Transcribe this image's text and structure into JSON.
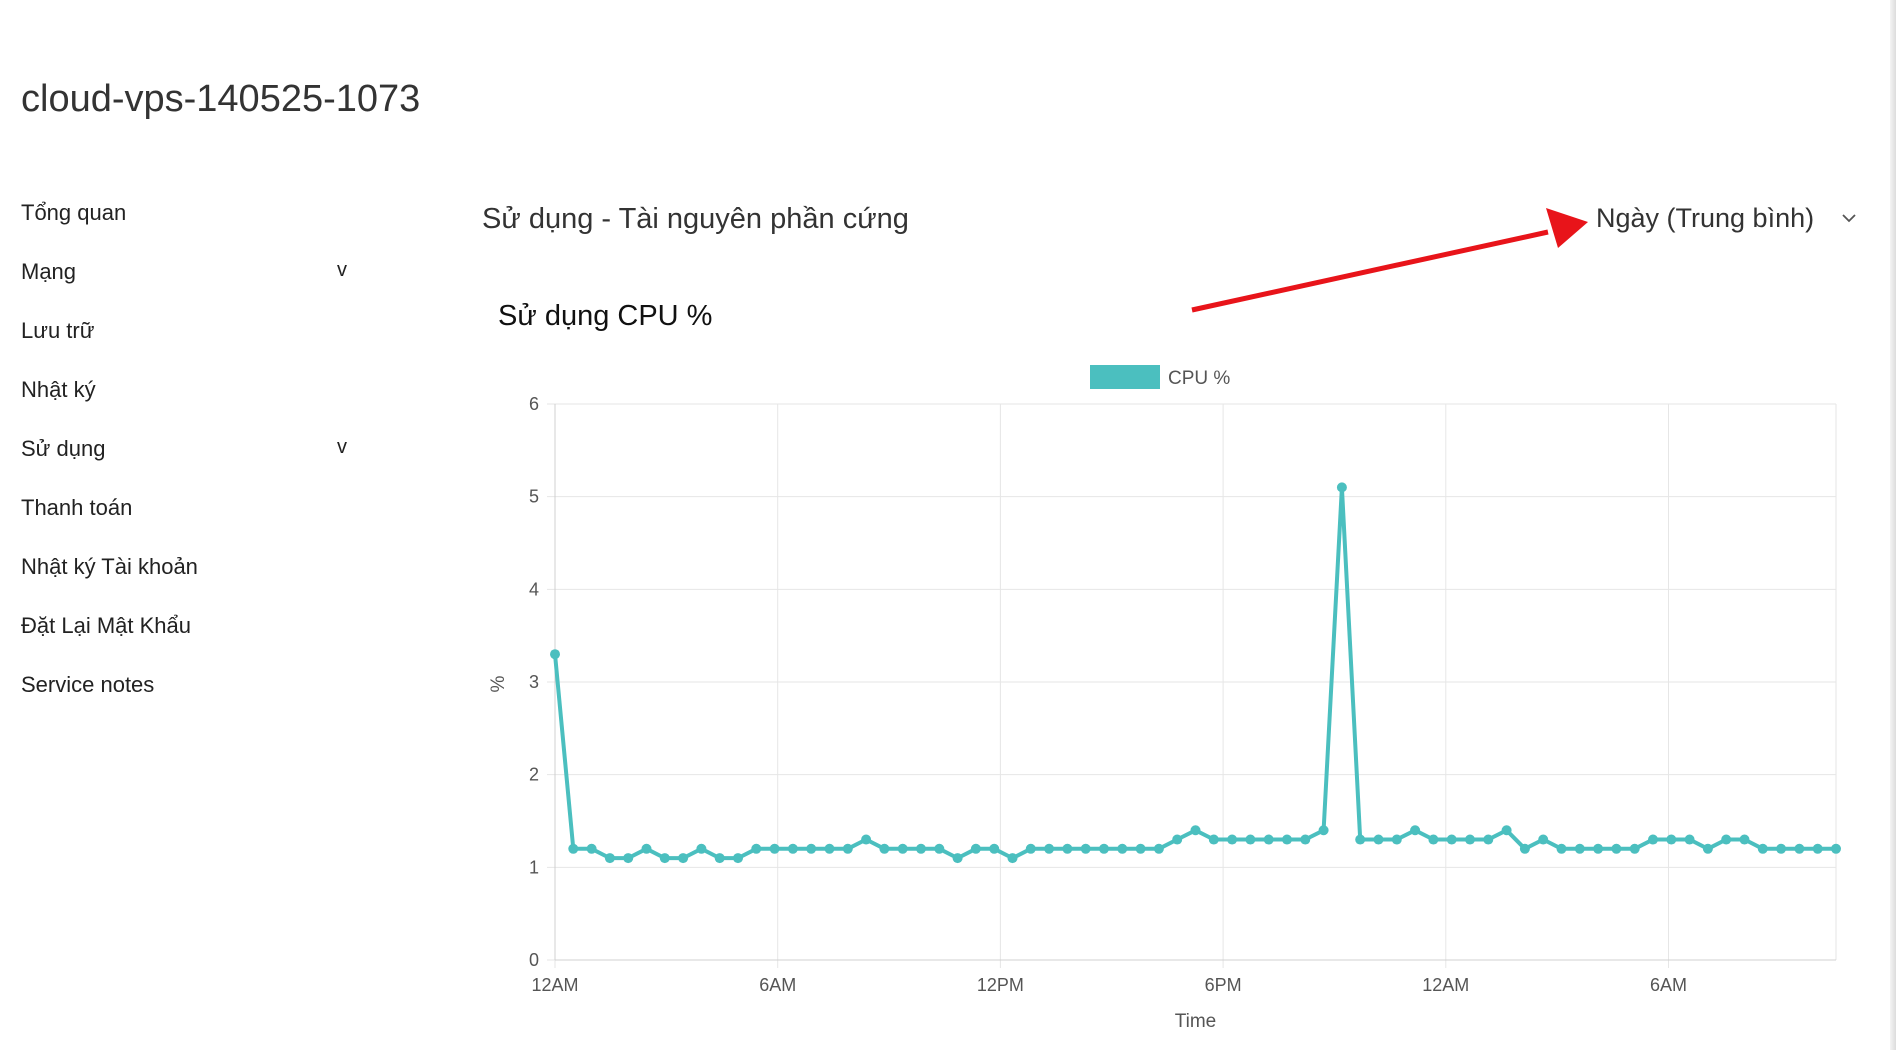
{
  "header": {
    "title": "cloud-vps-140525-1073"
  },
  "sidebar": {
    "items": [
      {
        "label": "Tổng quan",
        "has_submenu": false
      },
      {
        "label": "Mạng",
        "has_submenu": true
      },
      {
        "label": "Lưu trữ",
        "has_submenu": false
      },
      {
        "label": "Nhật ký",
        "has_submenu": false
      },
      {
        "label": "Sử dụng",
        "has_submenu": true
      },
      {
        "label": "Thanh toán",
        "has_submenu": false
      },
      {
        "label": "Nhật ký Tài khoản",
        "has_submenu": false
      },
      {
        "label": "Đặt Lại Mật Khẩu",
        "has_submenu": false
      },
      {
        "label": "Service notes",
        "has_submenu": false
      }
    ],
    "submenu_indicator": "v"
  },
  "main": {
    "section_title": "Sử dụng - Tài nguyên phần cứng",
    "period_select": {
      "value": "Ngày (Trung bình)",
      "icon": "chevron-down-icon"
    },
    "chart_title": "Sử dụng CPU %"
  },
  "colors": {
    "series": "#4bbfbf",
    "grid": "#e6e6e6",
    "annotation_arrow": "#e8141a"
  },
  "chart_data": {
    "type": "line",
    "legend": {
      "entries": [
        "CPU %"
      ],
      "position": "top-center"
    },
    "xlabel": "Time",
    "ylabel": "%",
    "ylim": [
      0,
      6
    ],
    "yticks": [
      0,
      1,
      2,
      3,
      4,
      5,
      6
    ],
    "xticks": [
      "12AM",
      "6AM",
      "12PM",
      "6PM",
      "12AM",
      "6AM"
    ],
    "grid": true,
    "series": [
      {
        "name": "CPU %",
        "values": [
          3.3,
          1.2,
          1.2,
          1.1,
          1.1,
          1.2,
          1.1,
          1.1,
          1.2,
          1.1,
          1.1,
          1.2,
          1.2,
          1.2,
          1.2,
          1.2,
          1.2,
          1.3,
          1.2,
          1.2,
          1.2,
          1.2,
          1.1,
          1.2,
          1.2,
          1.1,
          1.2,
          1.2,
          1.2,
          1.2,
          1.2,
          1.2,
          1.2,
          1.2,
          1.3,
          1.4,
          1.3,
          1.3,
          1.3,
          1.3,
          1.3,
          1.3,
          1.4,
          5.1,
          1.3,
          1.3,
          1.3,
          1.4,
          1.3,
          1.3,
          1.3,
          1.3,
          1.4,
          1.2,
          1.3,
          1.2,
          1.2,
          1.2,
          1.2,
          1.2,
          1.3,
          1.3,
          1.3,
          1.2,
          1.3,
          1.3,
          1.2,
          1.2,
          1.2,
          1.2,
          1.2
        ]
      }
    ]
  }
}
